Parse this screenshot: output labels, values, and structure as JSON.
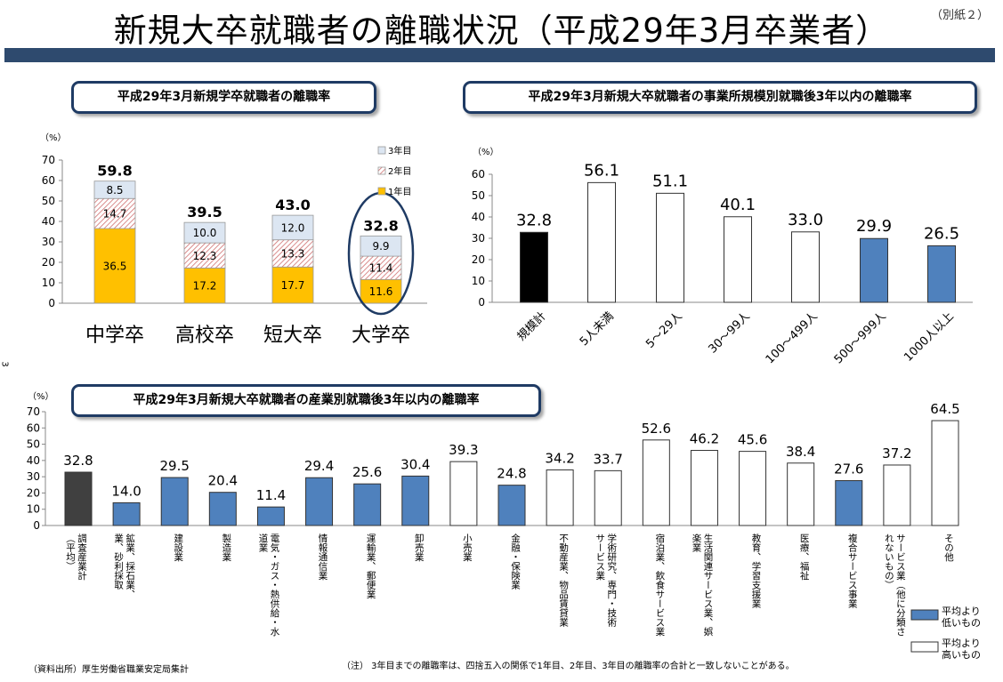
{
  "title": "新規大卒就職者の離職状況（平成29年3月卒業者）",
  "doc_ref": "（別紙２）",
  "page_mark": "3",
  "legend_below": {
    "low": "平均より\n低いもの",
    "high": "平均より\n高いもの"
  },
  "source": "（資料出所）厚生労働省職業安定局集計",
  "note": "（注）  3年目までの離職率は、四捨五入の関係で1年目、2年目、3年目の離職率の合計と一致しないことがある。",
  "colors": {
    "y1": "#ffc000",
    "y2_hatch": "#e8a0a0",
    "y3": "#dce6f2",
    "avg": "#000000",
    "blue": "#4f81bd",
    "dark": "#404040"
  },
  "chart_data": [
    {
      "type": "bar",
      "stacked": true,
      "title": "平成29年3月新規学卒就職者の離職率",
      "ylabel": "（%）",
      "ylim": [
        0,
        70
      ],
      "yticks": [
        0,
        10,
        20,
        30,
        40,
        50,
        60,
        70
      ],
      "categories": [
        "中学卒",
        "高校卒",
        "短大卒",
        "大学卒"
      ],
      "series": [
        {
          "name": "1年目",
          "values": [
            36.5,
            17.2,
            17.7,
            11.6
          ]
        },
        {
          "name": "2年目",
          "values": [
            14.7,
            12.3,
            13.3,
            11.4
          ]
        },
        {
          "name": "3年目",
          "values": [
            8.5,
            10.0,
            12.0,
            9.9
          ]
        }
      ],
      "totals": [
        59.8,
        39.5,
        43.0,
        32.8
      ],
      "legend": "top-right",
      "highlighted": "大学卒"
    },
    {
      "type": "bar",
      "title": "平成29年3月新規大卒就職者の事業所規模別就職後3年以内の離職率",
      "ylabel": "（%）",
      "ylim": [
        0,
        60
      ],
      "yticks": [
        0,
        10,
        20,
        30,
        40,
        50,
        60
      ],
      "categories": [
        "規模計",
        "5人未満",
        "5～29人",
        "30～99人",
        "100～499人",
        "500～999人",
        "1000人以上"
      ],
      "values": [
        32.8,
        56.1,
        51.1,
        40.1,
        33.0,
        29.9,
        26.5
      ],
      "value_labels": [
        "32.8",
        "56.1",
        "51.1",
        "40.1",
        "33.0",
        "29.9",
        "26.5"
      ],
      "fill": [
        "avg",
        "high",
        "high",
        "high",
        "high",
        "low",
        "low"
      ]
    },
    {
      "type": "bar",
      "title": "平成29年3月新規大卒就職者の産業別就職後3年以内の離職率",
      "ylabel": "（%）",
      "ylim": [
        0,
        70
      ],
      "yticks": [
        0,
        10,
        20,
        30,
        40,
        50,
        60,
        70
      ],
      "categories": [
        [
          "調査産業計",
          "（平均）"
        ],
        [
          "鉱業、採石業、",
          "業、砂利採取"
        ],
        [
          "建設業"
        ],
        [
          "製造業"
        ],
        [
          "電気・ガス・熱供給・水",
          "道業"
        ],
        [
          "情報通信業"
        ],
        [
          "運輸業、郵便業"
        ],
        [
          "卸売業"
        ],
        [
          "小売業"
        ],
        [
          "金融・保険業"
        ],
        [
          "不動産業、物品賃貸業"
        ],
        [
          "学術研究、専門・技術",
          "サービス業"
        ],
        [
          "宿泊業、飲食サービス業"
        ],
        [
          "生活関連サービス業、娯",
          "楽業"
        ],
        [
          "教育、学習支援業"
        ],
        [
          "医療、福祉"
        ],
        [
          "複合サービス事業"
        ],
        [
          "サービス業（他に分類さ",
          "れないもの）"
        ],
        [
          "その他"
        ]
      ],
      "values": [
        32.8,
        14.0,
        29.5,
        20.4,
        11.4,
        29.4,
        25.6,
        30.4,
        39.3,
        24.8,
        34.2,
        33.7,
        52.6,
        46.2,
        45.6,
        38.4,
        27.6,
        37.2,
        64.5
      ],
      "value_labels": [
        "32.8",
        "14.0",
        "29.5",
        "20.4",
        "11.4",
        "29.4",
        "25.6",
        "30.4",
        "39.3",
        "24.8",
        "34.2",
        "33.7",
        "52.6",
        "46.2",
        "45.6",
        "38.4",
        "27.6",
        "37.2",
        "64.5"
      ],
      "fill": [
        "avg",
        "low",
        "low",
        "low",
        "low",
        "low",
        "low",
        "low",
        "high",
        "low",
        "high",
        "high",
        "high",
        "high",
        "high",
        "high",
        "low",
        "high",
        "high"
      ],
      "legend": "bottom-right"
    }
  ]
}
